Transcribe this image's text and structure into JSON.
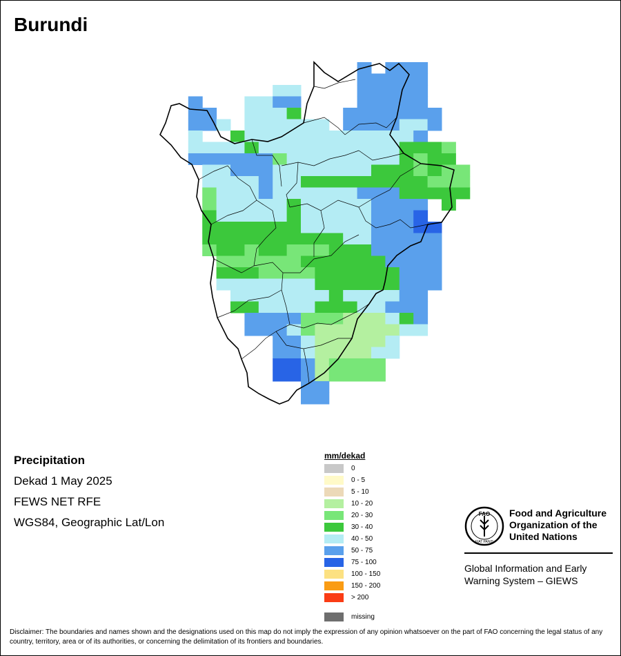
{
  "map": {
    "title": "Burundi",
    "info": {
      "variable": "Precipitation",
      "period": "Dekad 1 May 2025",
      "source": "FEWS NET RFE",
      "projection": "WGS84, Geographic Lat/Lon"
    },
    "legend": {
      "title": "mm/dekad",
      "items": [
        {
          "label": "0",
          "color": "#c8c8c8"
        },
        {
          "label": "0 - 5",
          "color": "#fffac8"
        },
        {
          "label": "5 - 10",
          "color": "#ecd9b8"
        },
        {
          "label": "10 - 20",
          "color": "#b4f0a0"
        },
        {
          "label": "20 - 30",
          "color": "#78e678"
        },
        {
          "label": "30 - 40",
          "color": "#3cc83c"
        },
        {
          "label": "40 - 50",
          "color": "#b4ecf4"
        },
        {
          "label": "50 - 75",
          "color": "#5aa0ec"
        },
        {
          "label": "75 - 100",
          "color": "#2864e6"
        },
        {
          "label": "100 - 150",
          "color": "#fce182"
        },
        {
          "label": "150 - 200",
          "color": "#fa9c14"
        },
        {
          "label": "> 200",
          "color": "#fa3c14"
        },
        {
          "label": "missing",
          "color": "#6e6e6e"
        }
      ]
    },
    "precip_grid": {
      "legend_classes": "0 = 10-20, 1 = 20-30, 2 = 30-40, 3 = 40-50, 4 = 50-75, 5 = 75-100, . = no data",
      "rows": [
        "..............4.444..",
        "..............44444..",
        "........33....44444..",
        "..4...3344....44444..",
        "..44..3332...4444444.",
        "..443.333333.4444334.",
        "..3..23333333333334..",
        "..3333233333333332221",
        "..4444441333333332122",
        "...3344433333332221211",
        "...3333433222222222111",
        "...1333433333344422222",
        "...1333332333334444.2.",
        "...2333332333334445...",
        "...22222223333344455..",
        "...22222222223344444..",
        "...12212211122244444..",
        "....1111112222224444..",
        "....2221111222222444..",
        "....3333333222222444..",
        ".....33333332333344...",
        ".....22333322233444...",
        "......4444111000324...",
        "......4443100000033...",
        "........443000003.....",
        "........443000033.....",
        "........55401111......",
        "........55401111......",
        "..........44..........",
        "..........44.........."
      ]
    },
    "organization": {
      "logo_text": "FAO",
      "logo_motto": "FIAT PANIS",
      "name_line1": "Food and Agriculture",
      "name_line2": "Organization of the",
      "name_line3": "United Nations",
      "system_line1": "Global Information and Early",
      "system_line2": "Warning System – GIEWS"
    },
    "disclaimer": "Disclaimer: The boundaries and names shown and the designations used on this map do not imply the expression of any opinion whatsoever on the part of FAO concerning the legal status of any country, territory, area or of its authorities, or concerning the delimitation of its frontiers and boundaries."
  }
}
